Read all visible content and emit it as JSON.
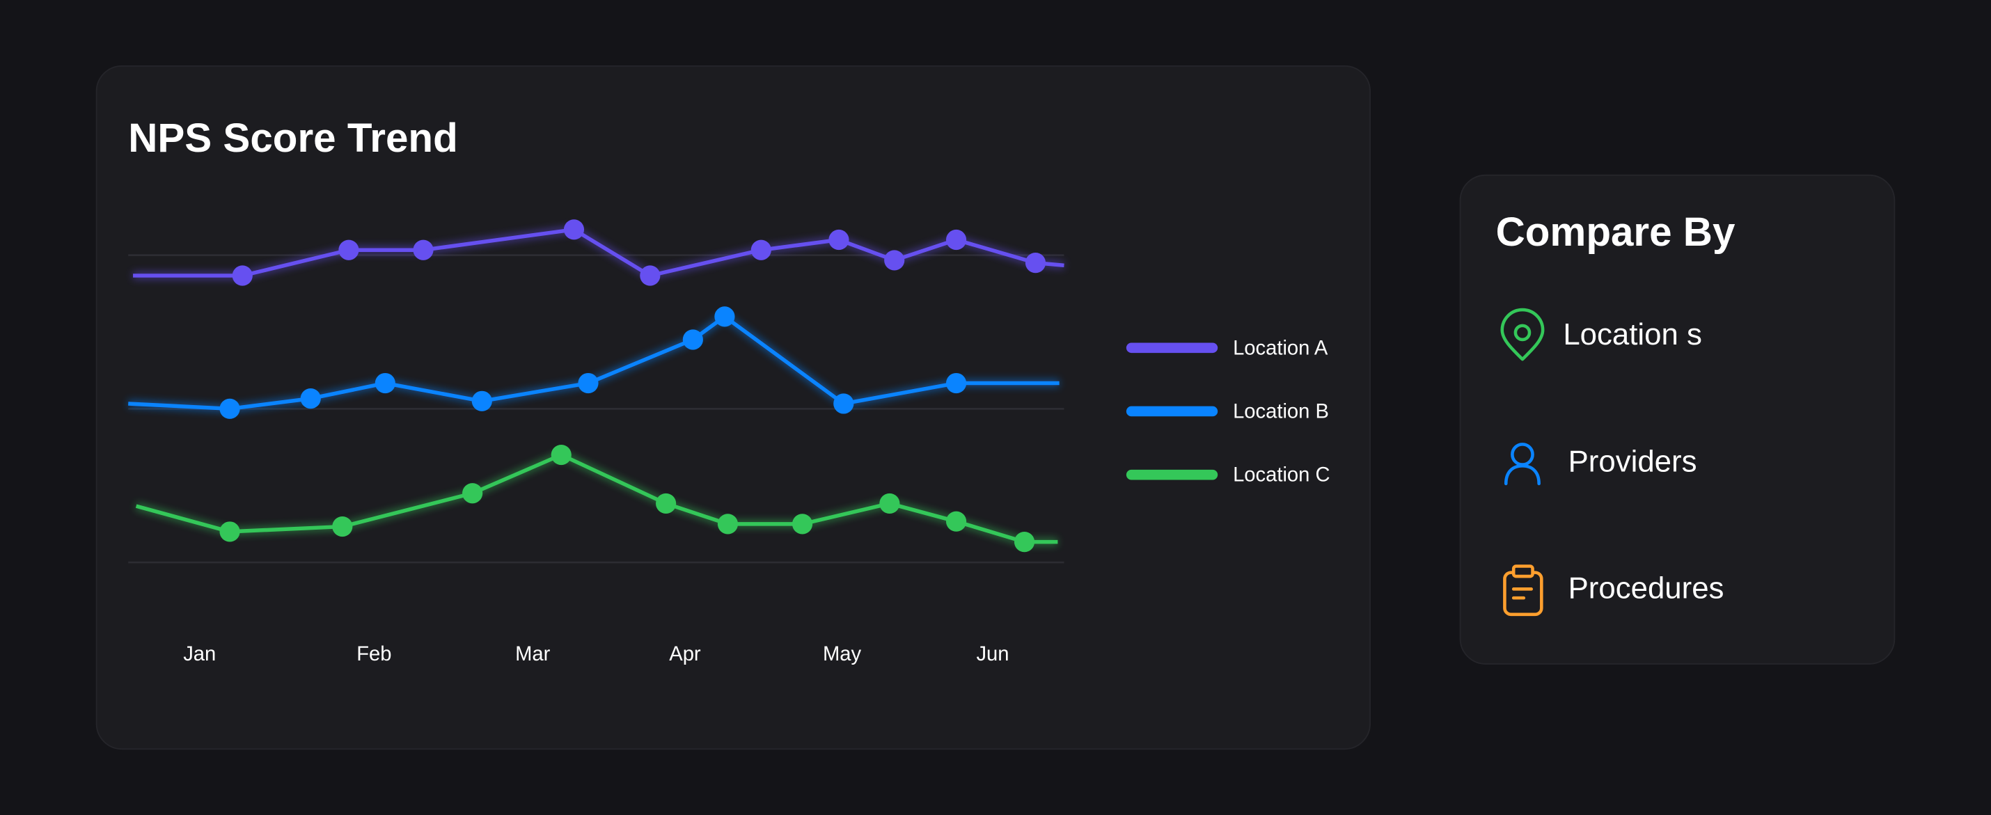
{
  "chart_data": {
    "type": "line",
    "title": "NPS Score Trend",
    "xlim": [
      0.55,
      6.45
    ],
    "xticks": [
      {
        "value": 1,
        "label": "Jan"
      },
      {
        "value": 2.1,
        "label": "Feb"
      },
      {
        "value": 3.1,
        "label": "Mar"
      },
      {
        "value": 4.06,
        "label": "Apr"
      },
      {
        "value": 5.05,
        "label": "May"
      },
      {
        "value": 6,
        "label": "Jun"
      }
    ],
    "ylim": [
      0,
      100
    ],
    "yticks": [
      20,
      50,
      80
    ],
    "grid": true,
    "legend": "right",
    "series": [
      {
        "name": "Location A",
        "color": "#6650f0",
        "x": [
          0.58,
          1.27,
          1.94,
          2.41,
          3.36,
          3.84,
          4.54,
          5.03,
          5.38,
          5.77,
          6.27,
          6.45
        ],
        "values": [
          76,
          76,
          81,
          81,
          85,
          76,
          81,
          83,
          79,
          83,
          78.5,
          78
        ]
      },
      {
        "name": "Location B",
        "color": "#0a84ff",
        "x": [
          0.55,
          1.19,
          1.7,
          2.17,
          2.78,
          3.45,
          4.11,
          4.31,
          5.06,
          5.77,
          6.42
        ],
        "values": [
          51,
          50,
          52,
          55,
          51.5,
          55,
          63.5,
          68,
          51,
          55,
          55
        ]
      },
      {
        "name": "Location C",
        "color": "#34c759",
        "x": [
          0.6,
          1.19,
          1.9,
          2.72,
          3.28,
          3.94,
          4.33,
          4.8,
          5.35,
          5.77,
          6.2,
          6.41
        ],
        "values": [
          31,
          26,
          27,
          33.5,
          41,
          31.5,
          27.5,
          27.5,
          31.5,
          28,
          24,
          24
        ]
      }
    ]
  },
  "compare_panel": {
    "title": "Compare By",
    "options": [
      "Location s",
      "Providers",
      "Procedures"
    ]
  }
}
